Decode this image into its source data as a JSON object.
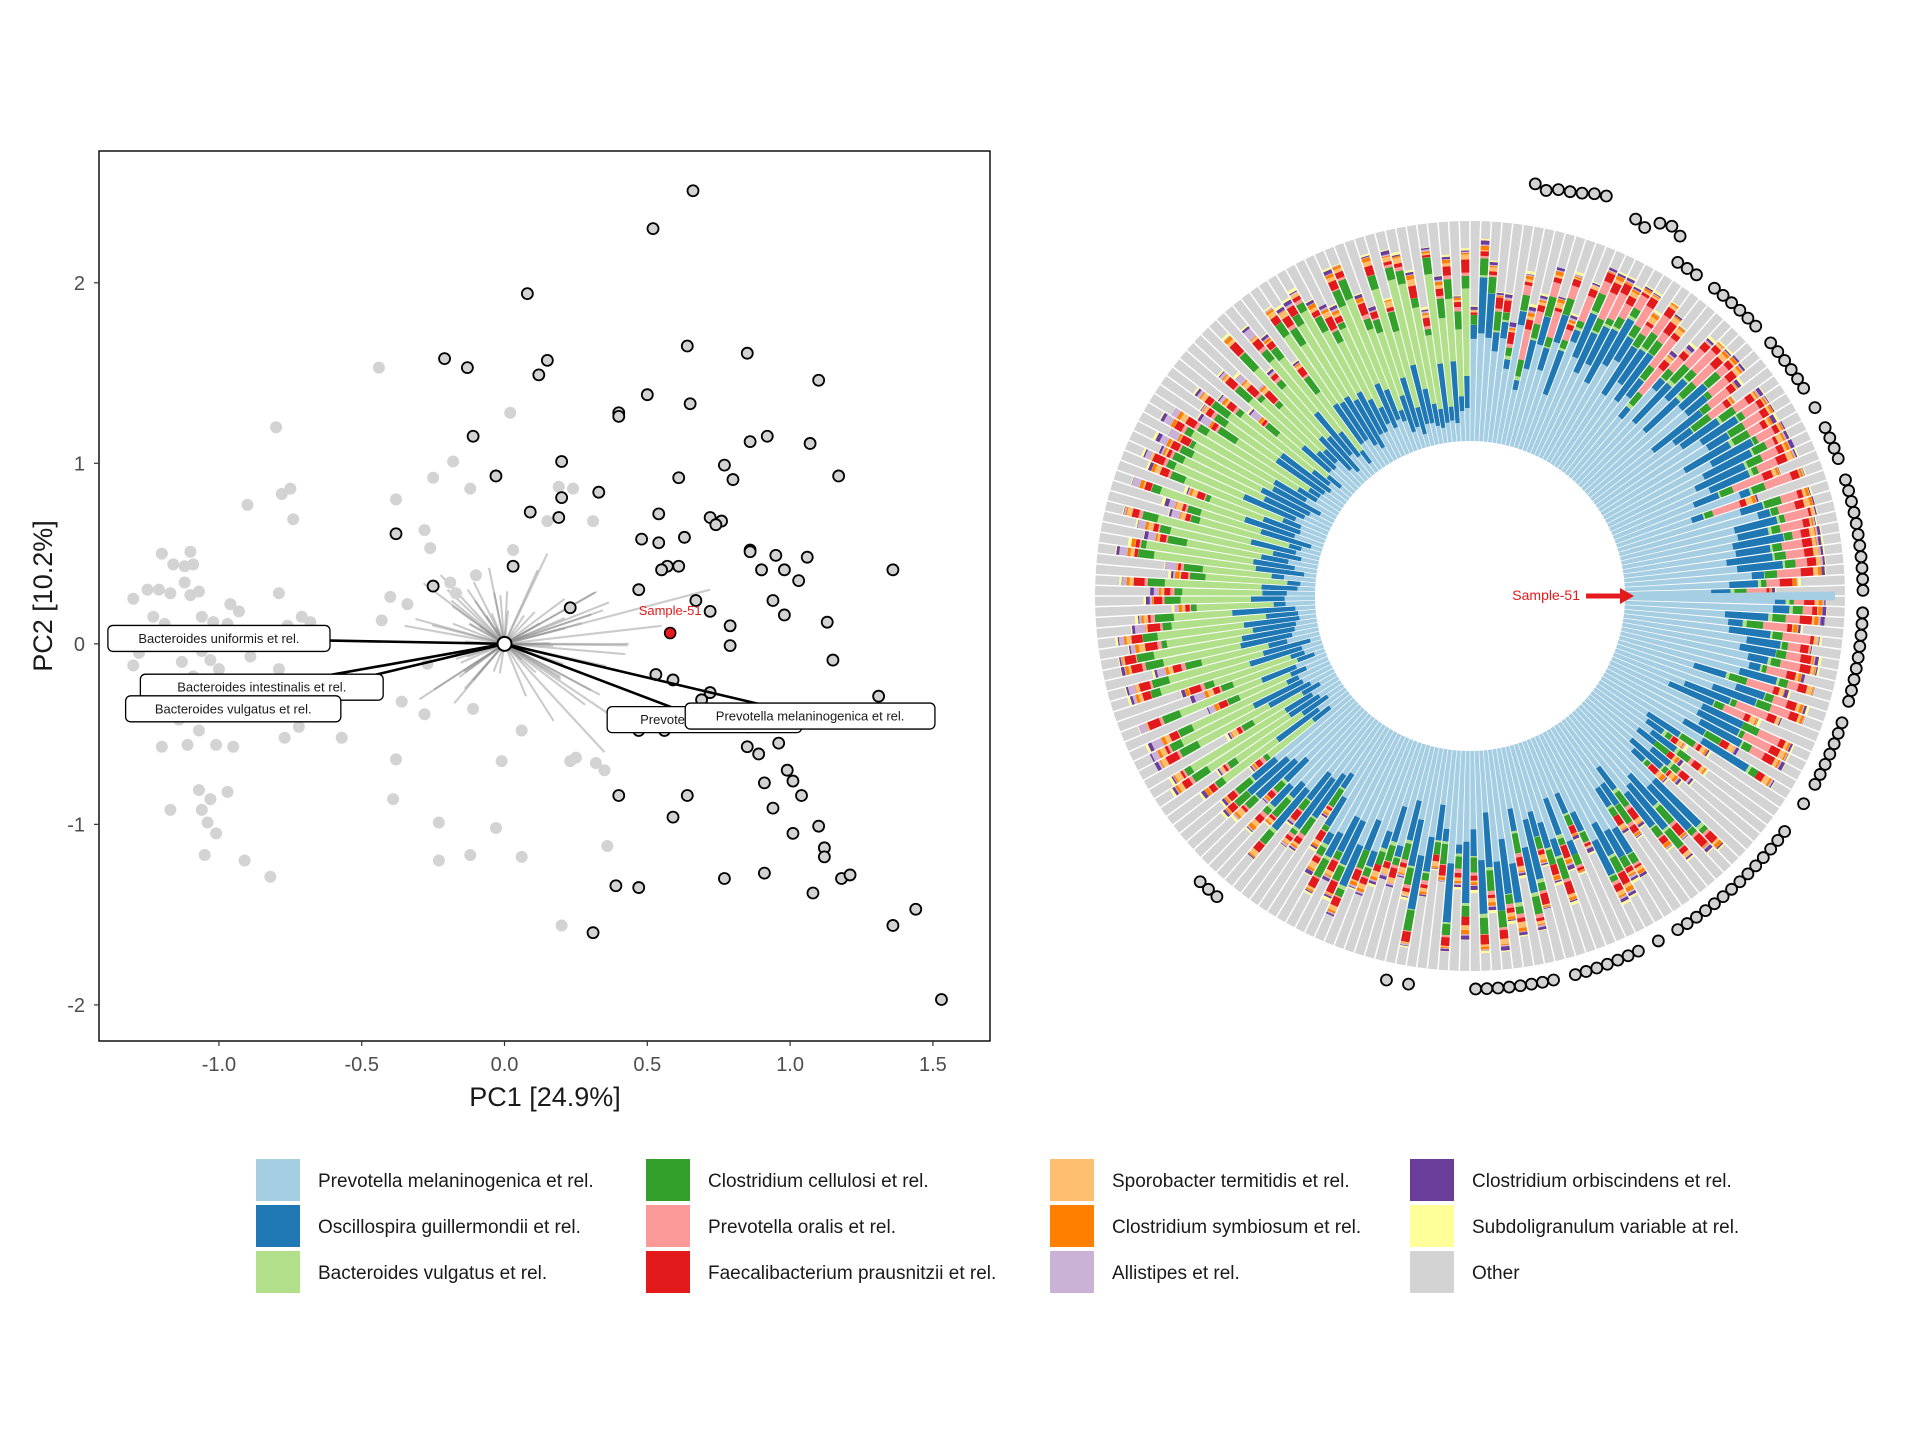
{
  "chart_data": [
    {
      "type": "scatter",
      "xlabel": "PC1 [24.9%]",
      "ylabel": "PC2 [10.2%]",
      "xlim": [
        -1.42,
        1.7
      ],
      "ylim": [
        -2.2,
        2.73
      ],
      "x_ticks": [
        "-1.0",
        "-0.5",
        "0.0",
        "0.5",
        "1.0",
        "1.5"
      ],
      "x_tick_values": [
        -1.0,
        -0.5,
        0.0,
        0.5,
        1.0,
        1.5
      ],
      "y_ticks": [
        "2",
        "1",
        "0",
        "-1",
        "-2"
      ],
      "y_tick_values": [
        2,
        1,
        0,
        -1,
        -2
      ],
      "grid": false,
      "highlight": {
        "label": "Sample-51",
        "x": 0.58,
        "y": 0.06,
        "color": "#e41a1c"
      },
      "series": [
        {
          "style": "grey-filled",
          "color": "#d3d3d3",
          "points": [
            [
              -1.2,
              0.5
            ],
            [
              -1.1,
              0.51
            ],
            [
              -1.16,
              0.44
            ],
            [
              -1.12,
              0.43
            ],
            [
              -1.09,
              0.44
            ],
            [
              -1.3,
              0.25
            ],
            [
              -1.25,
              0.3
            ],
            [
              -1.21,
              0.3
            ],
            [
              -1.17,
              0.28
            ],
            [
              -1.12,
              0.34
            ],
            [
              -1.1,
              0.27
            ],
            [
              -1.07,
              0.29
            ],
            [
              -1.23,
              0.15
            ],
            [
              -1.19,
              0.11
            ],
            [
              -1.06,
              0.15
            ],
            [
              -0.96,
              0.22
            ],
            [
              -0.93,
              0.18
            ],
            [
              -0.97,
              0.11
            ],
            [
              -1.02,
              0.12
            ],
            [
              -1.28,
              -0.05
            ],
            [
              -1.3,
              -0.12
            ],
            [
              -1.13,
              -0.1
            ],
            [
              -1.06,
              -0.04
            ],
            [
              -1.03,
              -0.09
            ],
            [
              -1.0,
              -0.14
            ],
            [
              -0.89,
              -0.07
            ],
            [
              -0.98,
              -0.2
            ],
            [
              -1.09,
              -0.18
            ],
            [
              -1.15,
              -0.28
            ],
            [
              -1.24,
              -0.33
            ],
            [
              -1.18,
              -0.34
            ],
            [
              -1.14,
              -0.42
            ],
            [
              -1.07,
              -0.48
            ],
            [
              -1.01,
              -0.56
            ],
            [
              -1.11,
              -0.56
            ],
            [
              -1.2,
              -0.57
            ],
            [
              -0.95,
              -0.57
            ],
            [
              -1.07,
              -0.81
            ],
            [
              -1.03,
              -0.86
            ],
            [
              -0.97,
              -0.82
            ],
            [
              -1.17,
              -0.92
            ],
            [
              -1.06,
              -0.92
            ],
            [
              -1.04,
              -0.99
            ],
            [
              -1.01,
              -1.05
            ],
            [
              -1.05,
              -1.17
            ],
            [
              -0.91,
              -1.2
            ],
            [
              -0.82,
              -1.29
            ],
            [
              -0.8,
              1.2
            ],
            [
              -0.78,
              0.83
            ],
            [
              -0.75,
              0.86
            ],
            [
              -0.74,
              0.69
            ],
            [
              -0.9,
              0.77
            ],
            [
              -0.79,
              0.28
            ],
            [
              -0.71,
              0.15
            ],
            [
              -0.68,
              0.12
            ],
            [
              -0.76,
              0.1
            ],
            [
              -0.79,
              -0.14
            ],
            [
              -0.76,
              -0.26
            ],
            [
              -0.72,
              -0.46
            ],
            [
              -0.77,
              -0.52
            ],
            [
              -0.57,
              -0.52
            ],
            [
              -0.44,
              1.53
            ],
            [
              -0.38,
              0.8
            ],
            [
              -0.4,
              0.26
            ],
            [
              -0.34,
              0.22
            ],
            [
              -0.43,
              0.13
            ],
            [
              -0.18,
              1.01
            ],
            [
              -0.25,
              0.92
            ],
            [
              -0.12,
              0.86
            ],
            [
              -0.28,
              0.63
            ],
            [
              -0.26,
              0.53
            ],
            [
              -0.19,
              0.34
            ],
            [
              -0.17,
              0.28
            ],
            [
              -0.1,
              0.38
            ],
            [
              0.03,
              0.52
            ],
            [
              -0.36,
              -0.32
            ],
            [
              -0.28,
              -0.39
            ],
            [
              -0.11,
              -0.36
            ],
            [
              -0.27,
              -0.11
            ],
            [
              -0.38,
              -0.64
            ],
            [
              -0.39,
              -0.86
            ],
            [
              -0.23,
              -0.99
            ],
            [
              -0.23,
              -1.2
            ],
            [
              -0.12,
              -1.17
            ],
            [
              -0.03,
              -1.02
            ],
            [
              -0.01,
              -0.65
            ],
            [
              0.06,
              -0.48
            ],
            [
              0.06,
              -1.18
            ],
            [
              0.02,
              1.28
            ],
            [
              0.15,
              0.68
            ],
            [
              0.19,
              0.87
            ],
            [
              0.24,
              0.86
            ],
            [
              0.31,
              0.68
            ],
            [
              0.23,
              -0.65
            ],
            [
              0.25,
              -0.63
            ],
            [
              0.32,
              -0.66
            ],
            [
              0.35,
              -0.7
            ],
            [
              0.2,
              -1.56
            ],
            [
              0.36,
              -1.12
            ]
          ]
        },
        {
          "style": "open-black",
          "color": "#d3d3d3",
          "points": [
            [
              0.66,
              2.51
            ],
            [
              0.52,
              2.3
            ],
            [
              0.08,
              1.94
            ],
            [
              0.64,
              1.65
            ],
            [
              0.85,
              1.61
            ],
            [
              0.15,
              1.57
            ],
            [
              -0.21,
              1.58
            ],
            [
              -0.13,
              1.53
            ],
            [
              0.12,
              1.49
            ],
            [
              1.1,
              1.46
            ],
            [
              0.5,
              1.38
            ],
            [
              0.65,
              1.33
            ],
            [
              0.4,
              1.28
            ],
            [
              0.4,
              1.26
            ],
            [
              -0.11,
              1.15
            ],
            [
              0.86,
              1.12
            ],
            [
              0.92,
              1.15
            ],
            [
              1.07,
              1.11
            ],
            [
              0.2,
              1.01
            ],
            [
              0.77,
              0.99
            ],
            [
              1.17,
              0.93
            ],
            [
              -0.03,
              0.93
            ],
            [
              0.61,
              0.92
            ],
            [
              0.8,
              0.91
            ],
            [
              0.33,
              0.84
            ],
            [
              0.2,
              0.81
            ],
            [
              0.09,
              0.73
            ],
            [
              0.19,
              0.7
            ],
            [
              0.54,
              0.72
            ],
            [
              0.72,
              0.7
            ],
            [
              0.76,
              0.68
            ],
            [
              0.74,
              0.66
            ],
            [
              -0.38,
              0.61
            ],
            [
              0.48,
              0.58
            ],
            [
              0.54,
              0.56
            ],
            [
              0.63,
              0.59
            ],
            [
              0.86,
              0.52
            ],
            [
              0.95,
              0.49
            ],
            [
              1.06,
              0.48
            ],
            [
              0.9,
              0.41
            ],
            [
              0.98,
              0.41
            ],
            [
              1.03,
              0.35
            ],
            [
              0.86,
              0.51
            ],
            [
              0.57,
              0.43
            ],
            [
              0.55,
              0.41
            ],
            [
              0.61,
              0.43
            ],
            [
              -0.25,
              0.32
            ],
            [
              0.03,
              0.43
            ],
            [
              0.47,
              0.3
            ],
            [
              0.94,
              0.24
            ],
            [
              0.67,
              0.24
            ],
            [
              0.98,
              0.16
            ],
            [
              0.72,
              0.18
            ],
            [
              0.23,
              0.2
            ],
            [
              1.36,
              0.41
            ],
            [
              1.13,
              0.12
            ],
            [
              1.15,
              -0.09
            ],
            [
              0.79,
              0.1
            ],
            [
              0.79,
              -0.01
            ],
            [
              0.53,
              -0.17
            ],
            [
              0.59,
              -0.2
            ],
            [
              0.72,
              -0.27
            ],
            [
              0.69,
              -0.31
            ],
            [
              0.75,
              -0.37
            ],
            [
              1.31,
              -0.29
            ],
            [
              1.33,
              -0.38
            ],
            [
              0.47,
              -0.48
            ],
            [
              0.56,
              -0.48
            ],
            [
              0.85,
              -0.57
            ],
            [
              0.85,
              -0.46
            ],
            [
              0.96,
              -0.55
            ],
            [
              0.89,
              -0.61
            ],
            [
              0.99,
              -0.7
            ],
            [
              1.01,
              -0.76
            ],
            [
              0.91,
              -0.77
            ],
            [
              1.04,
              -0.84
            ],
            [
              0.64,
              -0.84
            ],
            [
              0.4,
              -0.84
            ],
            [
              0.94,
              -0.91
            ],
            [
              1.1,
              -1.01
            ],
            [
              0.59,
              -0.96
            ],
            [
              1.01,
              -1.05
            ],
            [
              1.12,
              -1.13
            ],
            [
              1.12,
              -1.18
            ],
            [
              1.18,
              -1.3
            ],
            [
              1.21,
              -1.28
            ],
            [
              0.77,
              -1.3
            ],
            [
              0.91,
              -1.27
            ],
            [
              1.08,
              -1.38
            ],
            [
              0.47,
              -1.35
            ],
            [
              0.39,
              -1.34
            ],
            [
              1.36,
              -1.56
            ],
            [
              1.44,
              -1.47
            ],
            [
              0.31,
              -1.6
            ],
            [
              1.53,
              -1.97
            ]
          ]
        }
      ],
      "arrows": [
        {
          "x": -1.0,
          "y": 0.03,
          "label": "Bacteroides uniformis et rel."
        },
        {
          "x": -0.85,
          "y": -0.24,
          "label": "Bacteroides intestinalis et rel."
        },
        {
          "x": -0.95,
          "y": -0.36,
          "label": "Bacteroides vulgatus et rel."
        },
        {
          "x": 0.7,
          "y": -0.42,
          "label": "Prevotella oralis et rel."
        },
        {
          "x": 1.07,
          "y": -0.4,
          "label": "Prevotella melaninogenica et rel."
        }
      ]
    },
    {
      "type": "bar",
      "layout": "circular stacked",
      "n_samples": 220,
      "highlight": {
        "label": "Sample-51",
        "color": "#e41a1c"
      }
    }
  ],
  "legend": {
    "items": [
      {
        "label": "Prevotella melaninogenica et rel.",
        "color": "#a6cee3"
      },
      {
        "label": "Oscillospira guillermondii et rel.",
        "color": "#1f78b4"
      },
      {
        "label": "Bacteroides vulgatus et rel.",
        "color": "#b2df8a"
      },
      {
        "label": "Clostridium cellulosi et rel.",
        "color": "#33a02c"
      },
      {
        "label": "Prevotella oralis et rel.",
        "color": "#fb9a99"
      },
      {
        "label": "Faecalibacterium prausnitzii et rel.",
        "color": "#e31a1c"
      },
      {
        "label": "Sporobacter termitidis et rel.",
        "color": "#fdbf6f"
      },
      {
        "label": "Clostridium symbiosum et rel.",
        "color": "#ff7f00"
      },
      {
        "label": "Allistipes et rel.",
        "color": "#cab2d6"
      },
      {
        "label": "Clostridium orbiscindens et rel.",
        "color": "#6a3d9a"
      },
      {
        "label": "Subdoligranulum variable at rel.",
        "color": "#ffff99"
      },
      {
        "label": "Other",
        "color": "#d3d3d3"
      }
    ]
  }
}
